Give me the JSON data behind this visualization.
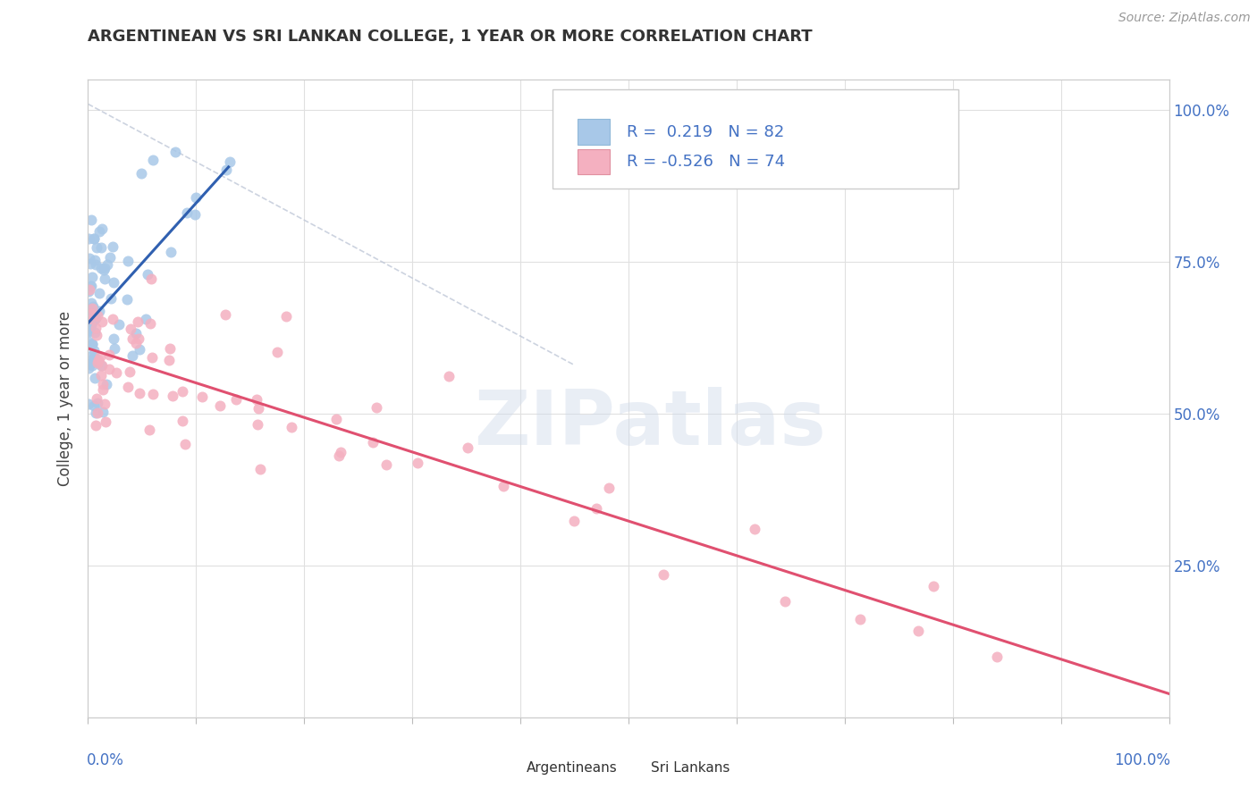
{
  "title": "ARGENTINEAN VS SRI LANKAN COLLEGE, 1 YEAR OR MORE CORRELATION CHART",
  "source_text": "Source: ZipAtlas.com",
  "ylabel": "College, 1 year or more",
  "right_yticks": [
    0.0,
    0.25,
    0.5,
    0.75,
    1.0
  ],
  "right_yticklabels": [
    "",
    "25.0%",
    "50.0%",
    "75.0%",
    "100.0%"
  ],
  "watermark": "ZIPatlas",
  "argentinean_color": "#a8c8e8",
  "srilanka_color": "#f4b0c0",
  "blue_line_color": "#3060b0",
  "pink_line_color": "#e05070",
  "ref_line_color": "#c0c8d8",
  "grid_color": "#e0e0e0",
  "axis_label_color": "#4472c4",
  "background_color": "#ffffff",
  "legend_box_color": "#f5f5f5",
  "legend_border_color": "#cccccc",
  "legend_text_color": "#4472c4",
  "title_fontsize": 13,
  "source_fontsize": 10,
  "axis_tick_fontsize": 12,
  "legend_fontsize": 13
}
